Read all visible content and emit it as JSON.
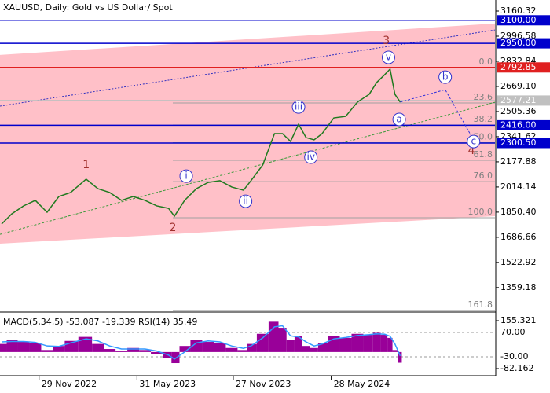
{
  "chart_data": {
    "type": "line",
    "title": "XAUUSD, Daily:  Gold vs US Dollar/ Spot",
    "xlim": [
      -73,
      852
    ],
    "xticks": [
      {
        "value": 0,
        "label": "29 Nov 2022"
      },
      {
        "value": 183,
        "label": "31 May 2023"
      },
      {
        "value": 363,
        "label": "27 Nov 2023"
      },
      {
        "value": 546,
        "label": "28 May 2024"
      }
    ],
    "ylim": [
      1204.9,
      3232.0
    ],
    "yticks": [
      3160.32,
      2996.58,
      2832.84,
      {
        "value": 2669.1,
        "label": "2669.10"
      },
      2505.36,
      2341.62,
      2177.88,
      2014.14,
      {
        "value": 1850.4,
        "label": "1850.40"
      },
      1686.66,
      1522.92,
      1359.18
    ],
    "series": [
      {
        "color": "#1f7a1f",
        "x": [
          -70,
          -51,
          -29,
          -7,
          15,
          37,
          59,
          88,
          110,
          132,
          154,
          176,
          198,
          220,
          242,
          253,
          272,
          294,
          316,
          338,
          360,
          382,
          396,
          418,
          440,
          455,
          470,
          485,
          499,
          514,
          529,
          551,
          573,
          595,
          617,
          631,
          646,
          656,
          665,
          675
        ],
        "values": [
          1773,
          1839,
          1891,
          1927,
          1850,
          1952,
          1978,
          2065,
          2003,
          1978,
          1927,
          1952,
          1927,
          1891,
          1875,
          1824,
          1927,
          2003,
          2044,
          2055,
          2014,
          1993,
          2055,
          2157,
          2362,
          2362,
          2311,
          2423,
          2336,
          2321,
          2362,
          2464,
          2474,
          2567,
          2618,
          2695,
          2746,
          2782,
          2618,
          2567
        ]
      }
    ],
    "levels": [
      {
        "value": 3100,
        "label": "3100.00",
        "color": "#0000cc"
      },
      {
        "value": 2950,
        "label": "2950.00",
        "color": "#0000cc"
      },
      {
        "value": 2792.85,
        "label": "2792.85",
        "color": "#e02020"
      },
      {
        "value": 2577.21,
        "label": "2577.21",
        "color": "#c0c0c0"
      },
      {
        "value": 2416,
        "label": "2416.00",
        "color": "#0000cc"
      },
      {
        "value": 2300.5,
        "label": "2300.50",
        "color": "#0000cc"
      }
    ],
    "fib": {
      "high": 2792,
      "low": 1814,
      "start": 250,
      "color": "#a0a0a0",
      "levels": [
        {
          "value": 0,
          "label": "0.0"
        },
        23.6,
        38.2,
        {
          "value": 50,
          "label": "50.0"
        },
        61.8,
        {
          "value": 76,
          "label": "76.0"
        },
        {
          "value": 100,
          "label": "100.0"
        },
        161.8
      ]
    },
    "channel": {
      "color": "#ffc0c8",
      "x": [
        -73,
        852
      ],
      "upper": [
        2874,
        3079
      ],
      "lower": [
        1645,
        1824
      ]
    },
    "trendlines": [
      {
        "color": "#3030c0",
        "x": [
          -73,
          852
        ],
        "y": [
          2541,
          3037
        ]
      },
      {
        "color": "#3a9a3a",
        "x": [
          -73,
          852
        ],
        "y": [
          1706,
          2566
        ]
      }
    ],
    "projection": {
      "color": "#3030dd",
      "x": [
        675,
        759,
        812
      ],
      "y": [
        2567,
        2648,
        2321
      ]
    },
    "waves": [
      {
        "label": "1",
        "x": 88,
        "y": 2157,
        "circled": false
      },
      {
        "label": "2",
        "x": 250,
        "y": 1747,
        "circled": false
      },
      {
        "label": "3",
        "x": 649,
        "y": 2966,
        "circled": false
      },
      {
        "label": "4",
        "x": 808,
        "y": 2249,
        "circled": false
      },
      {
        "label": "i",
        "x": 275,
        "y": 2085,
        "circled": true
      },
      {
        "label": "ii",
        "x": 386,
        "y": 1921,
        "circled": true
      },
      {
        "label": "iii",
        "x": 485,
        "y": 2535,
        "circled": true
      },
      {
        "label": "iv",
        "x": 508,
        "y": 2208,
        "circled": true
      },
      {
        "label": "v",
        "x": 653,
        "y": 2858,
        "circled": true
      },
      {
        "label": "a",
        "x": 673,
        "y": 2454,
        "circled": true
      },
      {
        "label": "b",
        "x": 759,
        "y": 2730,
        "circled": true
      },
      {
        "label": "c",
        "x": 812,
        "y": 2310,
        "circled": true
      }
    ],
    "indicator": {
      "type": "bar",
      "label": "MACD(5,34,5) -53.087 -19.339 RSI(14) 35.49",
      "ylim": [
        -117.2,
        194.2
      ],
      "yticks": [
        155.321,
        -82.162
      ],
      "y2lim": [
        -107.4,
        150.6
      ],
      "y2ticks": [
        {
          "value": 70,
          "label": "70.00"
        },
        {
          "value": -30,
          "label": "-30.00"
        }
      ],
      "series": [
        {
          "color": "#990099",
          "values": [
            40,
            60,
            50,
            45,
            10,
            30,
            55,
            75,
            40,
            15,
            5,
            20,
            10,
            -10,
            -30,
            -55,
            30,
            60,
            50,
            45,
            20,
            10,
            40,
            90,
            150,
            120,
            60,
            80,
            30,
            20,
            45,
            80,
            70,
            90,
            85,
            95,
            85,
            70,
            10,
            -53.087
          ]
        },
        {
          "color": "#3399ff",
          "values": [
            50,
            52,
            52,
            48,
            30,
            28,
            45,
            65,
            55,
            30,
            15,
            15,
            15,
            5,
            -15,
            -35,
            0,
            45,
            55,
            50,
            30,
            18,
            30,
            70,
            125,
            130,
            80,
            75,
            50,
            30,
            40,
            65,
            72,
            82,
            86,
            90,
            88,
            78,
            40,
            -19.339
          ]
        }
      ]
    }
  }
}
